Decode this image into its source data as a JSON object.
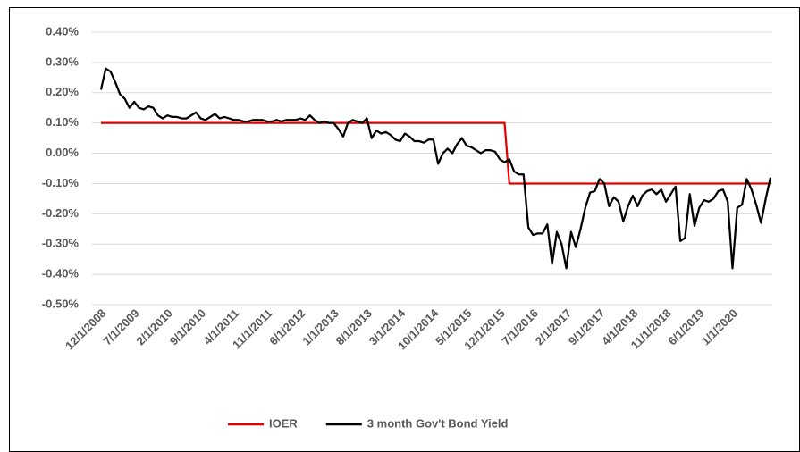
{
  "chart_data": {
    "type": "line",
    "categories": [
      "12/1/2008",
      null,
      null,
      null,
      null,
      null,
      null,
      "7/1/2009",
      null,
      null,
      null,
      null,
      null,
      null,
      "2/1/2010",
      null,
      null,
      null,
      null,
      null,
      null,
      "9/1/2010",
      null,
      null,
      null,
      null,
      null,
      null,
      "4/1/2011",
      null,
      null,
      null,
      null,
      null,
      null,
      "11/1/2011",
      null,
      null,
      null,
      null,
      null,
      null,
      "6/1/2012",
      null,
      null,
      null,
      null,
      null,
      null,
      "1/1/2013",
      null,
      null,
      null,
      null,
      null,
      null,
      "8/1/2013",
      null,
      null,
      null,
      null,
      null,
      null,
      "3/1/2014",
      null,
      null,
      null,
      null,
      null,
      null,
      "10/1/2014",
      null,
      null,
      null,
      null,
      null,
      null,
      "5/1/2015",
      null,
      null,
      null,
      null,
      null,
      null,
      "12/1/2015",
      null,
      null,
      null,
      null,
      null,
      null,
      "7/1/2016",
      null,
      null,
      null,
      null,
      null,
      null,
      "2/1/2017",
      null,
      null,
      null,
      null,
      null,
      null,
      "9/1/2017",
      null,
      null,
      null,
      null,
      null,
      null,
      "4/1/2018",
      null,
      null,
      null,
      null,
      null,
      null,
      "11/1/2018",
      null,
      null,
      null,
      null,
      null,
      null,
      "6/1/2019",
      null,
      null,
      null,
      null,
      null,
      null,
      "1/1/2020",
      null,
      null,
      null,
      null,
      null,
      null,
      null,
      null
    ],
    "series": [
      {
        "name": "IOER",
        "color": "#e00000",
        "values": [
          0.1,
          0.1,
          0.1,
          0.1,
          0.1,
          0.1,
          0.1,
          0.1,
          0.1,
          0.1,
          0.1,
          0.1,
          0.1,
          0.1,
          0.1,
          0.1,
          0.1,
          0.1,
          0.1,
          0.1,
          0.1,
          0.1,
          0.1,
          0.1,
          0.1,
          0.1,
          0.1,
          0.1,
          0.1,
          0.1,
          0.1,
          0.1,
          0.1,
          0.1,
          0.1,
          0.1,
          0.1,
          0.1,
          0.1,
          0.1,
          0.1,
          0.1,
          0.1,
          0.1,
          0.1,
          0.1,
          0.1,
          0.1,
          0.1,
          0.1,
          0.1,
          0.1,
          0.1,
          0.1,
          0.1,
          0.1,
          0.1,
          0.1,
          0.1,
          0.1,
          0.1,
          0.1,
          0.1,
          0.1,
          0.1,
          0.1,
          0.1,
          0.1,
          0.1,
          0.1,
          0.1,
          0.1,
          0.1,
          0.1,
          0.1,
          0.1,
          0.1,
          0.1,
          0.1,
          0.1,
          0.1,
          0.1,
          0.1,
          0.1,
          0.1,
          0.1,
          -0.1,
          -0.1,
          -0.1,
          -0.1,
          -0.1,
          -0.1,
          -0.1,
          -0.1,
          -0.1,
          -0.1,
          -0.1,
          -0.1,
          -0.1,
          -0.1,
          -0.1,
          -0.1,
          -0.1,
          -0.1,
          -0.1,
          -0.1,
          -0.1,
          -0.1,
          -0.1,
          -0.1,
          -0.1,
          -0.1,
          -0.1,
          -0.1,
          -0.1,
          -0.1,
          -0.1,
          -0.1,
          -0.1,
          -0.1,
          -0.1,
          -0.1,
          -0.1,
          -0.1,
          -0.1,
          -0.1,
          -0.1,
          -0.1,
          -0.1,
          -0.1,
          -0.1,
          -0.1,
          -0.1,
          -0.1,
          -0.1,
          -0.1,
          -0.1,
          -0.1,
          -0.1,
          -0.1,
          -0.1,
          -0.1
        ]
      },
      {
        "name": "3 month Gov't Bond Yield",
        "color": "#000000",
        "values": [
          0.21,
          0.28,
          0.27,
          0.235,
          0.195,
          0.18,
          0.15,
          0.17,
          0.15,
          0.145,
          0.155,
          0.15,
          0.125,
          0.115,
          0.125,
          0.12,
          0.12,
          0.115,
          0.115,
          0.125,
          0.135,
          0.115,
          0.11,
          0.12,
          0.13,
          0.115,
          0.12,
          0.115,
          0.11,
          0.11,
          0.105,
          0.105,
          0.11,
          0.11,
          0.11,
          0.105,
          0.105,
          0.11,
          0.105,
          0.11,
          0.11,
          0.11,
          0.115,
          0.11,
          0.125,
          0.11,
          0.1,
          0.105,
          0.1,
          0.1,
          0.08,
          0.055,
          0.1,
          0.11,
          0.105,
          0.1,
          0.115,
          0.05,
          0.075,
          0.065,
          0.07,
          0.06,
          0.045,
          0.04,
          0.065,
          0.055,
          0.04,
          0.04,
          0.035,
          0.045,
          0.045,
          -0.035,
          0.0,
          0.015,
          0.0,
          0.03,
          0.05,
          0.025,
          0.02,
          0.01,
          0.0,
          0.01,
          0.01,
          0.005,
          -0.02,
          -0.03,
          -0.02,
          -0.06,
          -0.07,
          -0.07,
          -0.245,
          -0.27,
          -0.265,
          -0.265,
          -0.235,
          -0.365,
          -0.26,
          -0.3,
          -0.38,
          -0.26,
          -0.31,
          -0.25,
          -0.18,
          -0.13,
          -0.125,
          -0.085,
          -0.1,
          -0.175,
          -0.145,
          -0.16,
          -0.225,
          -0.175,
          -0.14,
          -0.175,
          -0.14,
          -0.125,
          -0.12,
          -0.135,
          -0.12,
          -0.16,
          -0.135,
          -0.11,
          -0.29,
          -0.28,
          -0.135,
          -0.24,
          -0.18,
          -0.155,
          -0.16,
          -0.15,
          -0.125,
          -0.12,
          -0.16,
          -0.38,
          -0.18,
          -0.17,
          -0.085,
          -0.12,
          -0.17,
          -0.23,
          -0.15,
          -0.08
        ]
      }
    ],
    "ylim": [
      -0.5,
      0.4
    ],
    "yticks": [
      {
        "value": -0.5,
        "label": "-0.50%"
      },
      {
        "value": -0.4,
        "label": "-0.40%"
      },
      {
        "value": -0.3,
        "label": "-0.30%"
      },
      {
        "value": -0.2,
        "label": "-0.20%"
      },
      {
        "value": -0.1,
        "label": "-0.10%"
      },
      {
        "value": 0,
        "label": "0.00%"
      },
      {
        "value": 0.1,
        "label": "0.10%"
      },
      {
        "value": 0.2,
        "label": "0.20%"
      },
      {
        "value": 0.3,
        "label": "0.30%"
      },
      {
        "value": 0.4,
        "label": "0.40%"
      }
    ],
    "grid": true,
    "legend": "bottom"
  }
}
